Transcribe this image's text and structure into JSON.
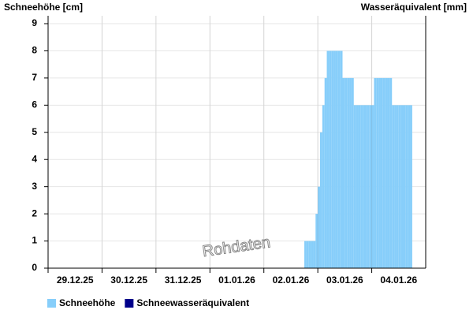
{
  "chart_data": {
    "type": "bar",
    "y_label": "Schneehöhe [cm]",
    "y2_label": "Wasseräquivalent [mm]",
    "watermark": "Rohdaten",
    "xlim": [
      "29.12.25 00:00",
      "05.01.26 00:00"
    ],
    "xticks": [
      "29.12.25",
      "30.12.25",
      "31.12.25",
      "01.01.26",
      "02.01.26",
      "03.01.26",
      "04.01.26"
    ],
    "ylim": [
      0,
      9
    ],
    "yticks": [
      0,
      1,
      2,
      3,
      4,
      5,
      6,
      7,
      8,
      9
    ],
    "grid": true,
    "x": [
      "02.01.26 18:00",
      "02.01.26 19:00",
      "02.01.26 20:00",
      "02.01.26 21:00",
      "02.01.26 22:00",
      "02.01.26 23:00",
      "03.01.26 00:00",
      "03.01.26 01:00",
      "03.01.26 02:00",
      "03.01.26 03:00",
      "03.01.26 04:00",
      "03.01.26 05:00",
      "03.01.26 06:00",
      "03.01.26 07:00",
      "03.01.26 08:00",
      "03.01.26 09:00",
      "03.01.26 10:00",
      "03.01.26 11:00",
      "03.01.26 12:00",
      "03.01.26 13:00",
      "03.01.26 14:00",
      "03.01.26 15:00",
      "03.01.26 16:00",
      "03.01.26 17:00",
      "03.01.26 18:00",
      "03.01.26 19:00",
      "03.01.26 20:00",
      "03.01.26 21:00",
      "03.01.26 22:00",
      "03.01.26 23:00",
      "04.01.26 00:00",
      "04.01.26 01:00",
      "04.01.26 02:00",
      "04.01.26 03:00",
      "04.01.26 04:00",
      "04.01.26 05:00",
      "04.01.26 06:00",
      "04.01.26 07:00",
      "04.01.26 08:00",
      "04.01.26 09:00",
      "04.01.26 10:00",
      "04.01.26 11:00",
      "04.01.26 12:00",
      "04.01.26 13:00",
      "04.01.26 14:00",
      "04.01.26 15:00",
      "04.01.26 16:00",
      "04.01.26 17:00"
    ],
    "series": [
      {
        "name": "Schneehöhe",
        "color": "#87cefa",
        "values": [
          1,
          1,
          1,
          1,
          1,
          2,
          3,
          5,
          6,
          7,
          8,
          8,
          8,
          8,
          8,
          8,
          8,
          7,
          7,
          7,
          7,
          7,
          6,
          6,
          6,
          6,
          6,
          6,
          6,
          6,
          6,
          7,
          7,
          7,
          7,
          7,
          7,
          7,
          7,
          6,
          6,
          6,
          6,
          6,
          6,
          6,
          6,
          6
        ]
      },
      {
        "name": "Schneewasseräquivalent",
        "color": "#00008b"
      }
    ]
  }
}
